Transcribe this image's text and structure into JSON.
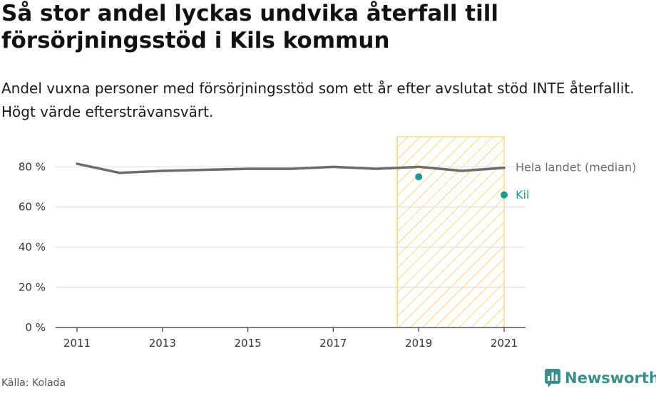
{
  "header": {
    "title": "Så stor andel lyckas undvika återfall till försörjningsstöd i Kils kommun",
    "subtitle": "Andel vuxna personer med försörjningsstöd som ett år efter avslutat stöd INTE återfallit. Högt värde eftersträvansvärt."
  },
  "footer": {
    "source": "Källa: Kolada",
    "brand": "Newsworthy",
    "brand_icon": "bar-chart-speech-bubble-icon"
  },
  "colors": {
    "median_line": "#6b6b70",
    "kil": "#1a9e92",
    "highlight": "#f5c842",
    "grid": "#dcdcdc",
    "brand": "#3a8f8a"
  },
  "chart_data": {
    "type": "line",
    "x_ticks": [
      2011,
      2013,
      2015,
      2017,
      2019,
      2021
    ],
    "y_ticks": [
      0,
      20,
      40,
      60,
      80
    ],
    "y_tick_labels": [
      "0 %",
      "20 %",
      "40 %",
      "60 %",
      "80 %"
    ],
    "xlim": [
      2011,
      2021
    ],
    "ylim": [
      0,
      95
    ],
    "grid": "horizontal",
    "highlight_range": [
      2018.5,
      2021
    ],
    "series": [
      {
        "name": "Hela landet (median)",
        "style": "line",
        "x": [
          2011,
          2012,
          2013,
          2014,
          2015,
          2016,
          2017,
          2018,
          2019,
          2020,
          2021
        ],
        "values": [
          81.5,
          77,
          78,
          78.5,
          79,
          79,
          80,
          79,
          80,
          78,
          79.5
        ]
      },
      {
        "name": "Kil",
        "style": "points",
        "x": [
          2019,
          2021
        ],
        "values": [
          75,
          66
        ]
      }
    ]
  }
}
